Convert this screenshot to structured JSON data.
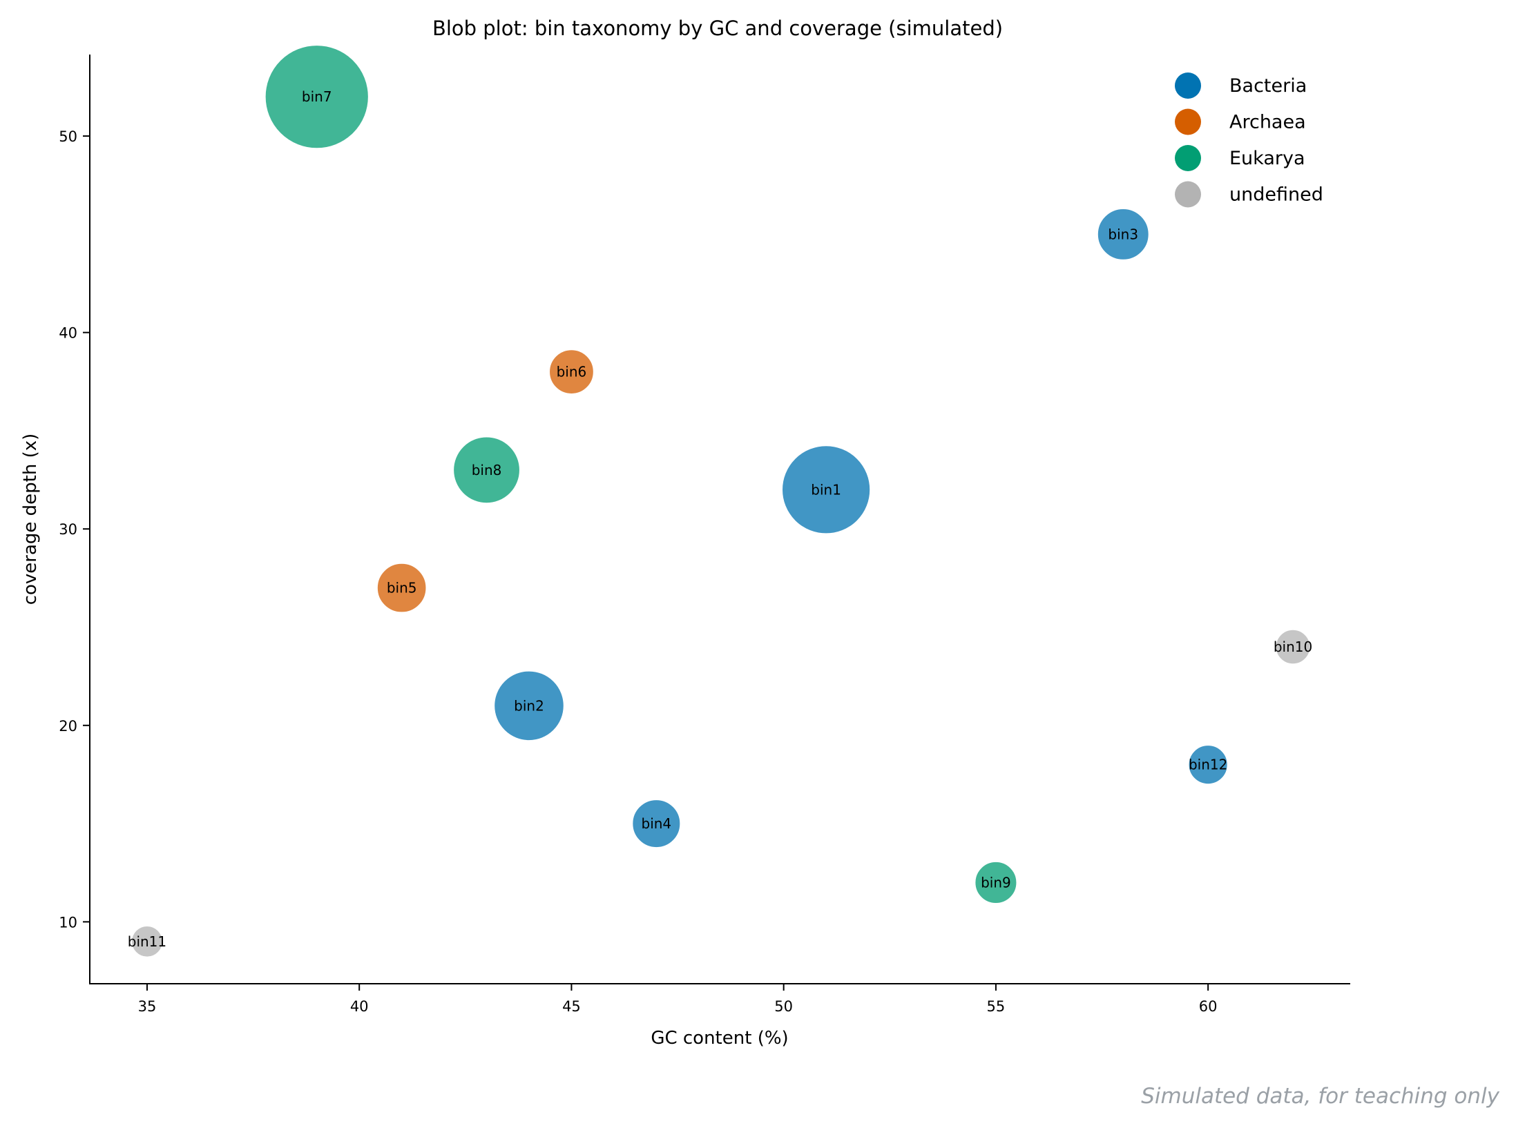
{
  "chart_data": {
    "type": "scatter",
    "title": "Blob plot: bin taxonomy by GC and coverage (simulated)",
    "xlabel": "GC content (%)",
    "ylabel": "coverage depth (x)",
    "xlim": [
      33.65,
      63.35
    ],
    "ylim": [
      6.85,
      54.15
    ],
    "xticks": [
      35,
      40,
      45,
      50,
      55,
      60
    ],
    "yticks": [
      10,
      20,
      30,
      40,
      50
    ],
    "grid": false,
    "legend_position": "top-right",
    "size_encoding": "relative bin size",
    "series": [
      {
        "name": "Bacteria",
        "color": "#0173b2"
      },
      {
        "name": "Archaea",
        "color": "#d55e00"
      },
      {
        "name": "Eukarya",
        "color": "#029e73"
      },
      {
        "name": "undefined",
        "color": "#b3b3b3"
      }
    ],
    "points": [
      {
        "label": "bin1",
        "x": 51,
        "y": 32,
        "size": 3.5,
        "group": "Bacteria"
      },
      {
        "label": "bin2",
        "x": 44,
        "y": 21,
        "size": 2.2,
        "group": "Bacteria"
      },
      {
        "label": "bin3",
        "x": 58,
        "y": 45,
        "size": 1.2,
        "group": "Bacteria"
      },
      {
        "label": "bin4",
        "x": 47,
        "y": 15,
        "size": 1.05,
        "group": "Bacteria"
      },
      {
        "label": "bin5",
        "x": 41,
        "y": 27,
        "size": 1.1,
        "group": "Archaea"
      },
      {
        "label": "bin6",
        "x": 45,
        "y": 38,
        "size": 0.9,
        "group": "Archaea"
      },
      {
        "label": "bin7",
        "x": 39,
        "y": 52,
        "size": 4.8,
        "group": "Eukarya"
      },
      {
        "label": "bin8",
        "x": 43,
        "y": 33,
        "size": 2.0,
        "group": "Eukarya"
      },
      {
        "label": "bin9",
        "x": 55,
        "y": 12,
        "size": 0.8,
        "group": "Eukarya"
      },
      {
        "label": "bin10",
        "x": 62,
        "y": 24,
        "size": 0.55,
        "group": "undefined"
      },
      {
        "label": "bin11",
        "x": 35,
        "y": 9,
        "size": 0.45,
        "group": "undefined"
      },
      {
        "label": "bin12",
        "x": 60,
        "y": 18,
        "size": 0.7,
        "group": "Bacteria"
      }
    ]
  },
  "footnote": "Simulated data, for teaching only"
}
